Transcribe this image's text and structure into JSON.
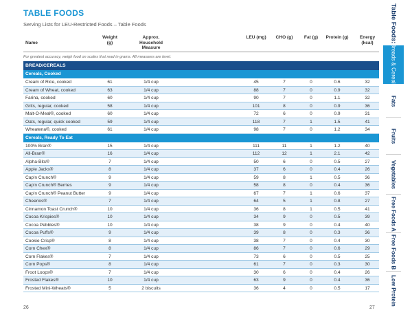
{
  "title": "TABLE FOODS",
  "subtitle": "Serving Lists for LEU-Restricted Foods – Table Foods",
  "headers": {
    "name": "Name",
    "weight": "Weight (g)",
    "household": "Approx. Household Measure",
    "leu": "LEU (mg)",
    "cho": "CHO (g)",
    "fat": "Fat (g)",
    "protein": "Protein (g)",
    "energy": "Energy (kcal)"
  },
  "note": "For greatest accuracy, weigh food on scales that read in grams.  All measures are level.",
  "section": "BREAD/CEREALS",
  "cooked": {
    "label": "Cereals, Cooked",
    "rows": [
      [
        "Cream of Rice, cooked",
        "61",
        "1/4 cup",
        "45",
        "7",
        "0",
        "0.6",
        "32"
      ],
      [
        "Cream of Wheat, cooked",
        "63",
        "1/4 cup",
        "88",
        "7",
        "0",
        "0.9",
        "32"
      ],
      [
        "Farina, cooked",
        "60",
        "1/4 cup",
        "90",
        "7",
        "0",
        "1.1",
        "32"
      ],
      [
        "Grits, regular, cooked",
        "58",
        "1/4 cup",
        "101",
        "8",
        "0",
        "0.9",
        "36"
      ],
      [
        "Malt-O-Meal®, cooked",
        "60",
        "1/4 cup",
        "72",
        "6",
        "0",
        "0.9",
        "31"
      ],
      [
        "Oats, regular, quick cooked",
        "59",
        "1/4 cup",
        "118",
        "7",
        "1",
        "1.5",
        "41"
      ],
      [
        "Wheatena®, cooked",
        "61",
        "1/4 cup",
        "98",
        "7",
        "0",
        "1.2",
        "34"
      ]
    ]
  },
  "ready": {
    "label": "Cereals, Ready To Eat",
    "rows": [
      [
        "100% Bran®",
        "15",
        "1/4 cup",
        "111",
        "11",
        "1",
        "1.2",
        "40"
      ],
      [
        "All-Bran®",
        "16",
        "1/4 cup",
        "112",
        "12",
        "1",
        "2.1",
        "42"
      ],
      [
        "Alpha-Bits®",
        "7",
        "1/4 cup",
        "50",
        "6",
        "0",
        "0.5",
        "27"
      ],
      [
        "Apple Jacks®",
        "8",
        "1/4 cup",
        "37",
        "6",
        "0",
        "0.4",
        "26"
      ],
      [
        "Cap'n Crunch®",
        "9",
        "1/4 cup",
        "59",
        "8",
        "1",
        "0.5",
        "36"
      ],
      [
        "Cap'n Crunch® Berries",
        "9",
        "1/4 cup",
        "58",
        "8",
        "0",
        "0.4",
        "36"
      ],
      [
        "Cap'n Crunch® Peanut Butter",
        "9",
        "1/4 cup",
        "67",
        "7",
        "1",
        "0.6",
        "37"
      ],
      [
        "Cheerios®",
        "7",
        "1/4 cup",
        "64",
        "5",
        "1",
        "0.8",
        "27"
      ],
      [
        "Cinnamon Toast Crunch®",
        "10",
        "1/4 cup",
        "36",
        "8",
        "1",
        "0.5",
        "41"
      ],
      [
        "Cocoa Krispies®",
        "10",
        "1/4 cup",
        "34",
        "9",
        "0",
        "0.5",
        "39"
      ],
      [
        "Cocoa Pebbles®",
        "10",
        "1/4 cup",
        "38",
        "9",
        "0",
        "0.4",
        "40"
      ],
      [
        "Cocoa Puffs®",
        "9",
        "1/4 cup",
        "39",
        "8",
        "0",
        "0.3",
        "36"
      ],
      [
        "Cookie Crisp®",
        "8",
        "1/4 cup",
        "38",
        "7",
        "0",
        "0.4",
        "30"
      ],
      [
        "Corn Chex®",
        "8",
        "1/4 cup",
        "86",
        "7",
        "0",
        "0.6",
        "29"
      ],
      [
        "Corn Flakes®",
        "7",
        "1/4 cup",
        "73",
        "6",
        "0",
        "0.5",
        "25"
      ],
      [
        "Corn Pops®",
        "8",
        "1/4 cup",
        "61",
        "7",
        "0",
        "0.3",
        "30"
      ],
      [
        "Froot Loops®",
        "7",
        "1/4 cup",
        "30",
        "6",
        "0",
        "0.4",
        "26"
      ],
      [
        "Frosted Flakes®",
        "10",
        "1/4 cup",
        "63",
        "9",
        "0",
        "0.4",
        "36"
      ],
      [
        "Frosted Mini-Wheats®",
        "5",
        "2 biscuits",
        "36",
        "4",
        "0",
        "0.5",
        "17"
      ]
    ]
  },
  "page_left": "26",
  "page_right": "27",
  "tabs": {
    "title": "Table Foods:",
    "items": [
      "Breads & Cereals",
      "Fats",
      "Fruits",
      "Vegetables",
      "Free Foods A",
      "Free Foods B",
      "Low Protein"
    ],
    "active_index": 0
  },
  "colors": {
    "accent": "#1a96d4",
    "section": "#1a4f8c",
    "row_alt": "#e3eff9",
    "tab_text": "#1a3d6d"
  }
}
